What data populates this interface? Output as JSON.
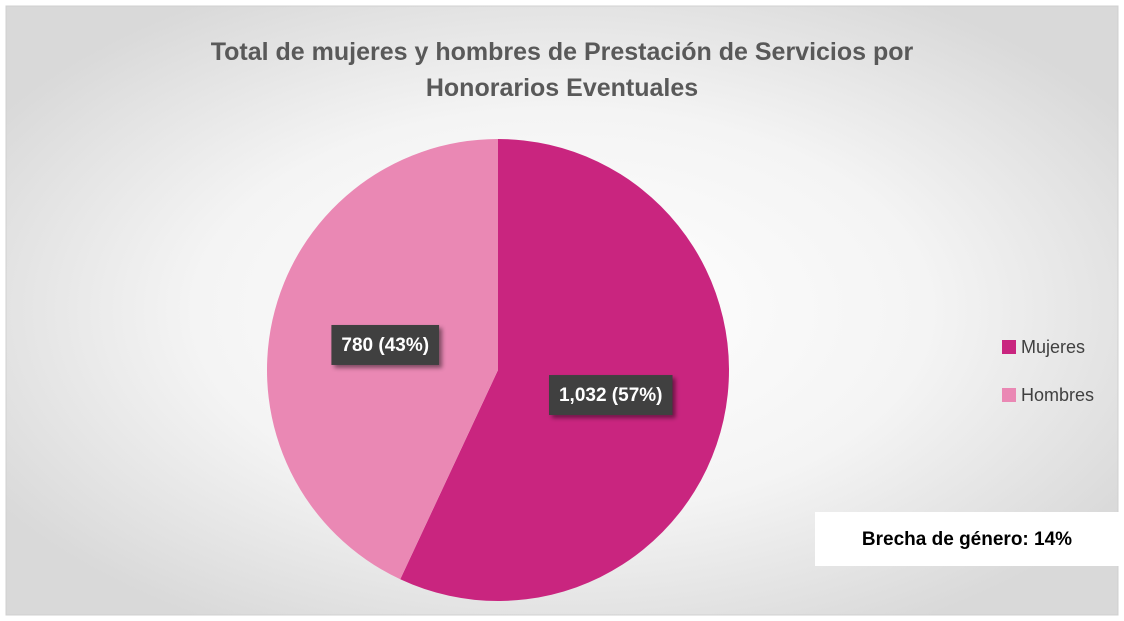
{
  "chart_data": {
    "type": "pie",
    "title": "Total de mujeres y hombres de Prestación de Servicios por Honorarios Eventuales",
    "categories": [
      "Mujeres",
      "Hombres"
    ],
    "values": [
      1032,
      780
    ],
    "value_labels": [
      "1,032 (57%)",
      "780 (43%)"
    ],
    "colors": [
      "#c9257f",
      "#ea88b4"
    ],
    "legend": "right",
    "annotation": "Brecha de género: 14%"
  }
}
